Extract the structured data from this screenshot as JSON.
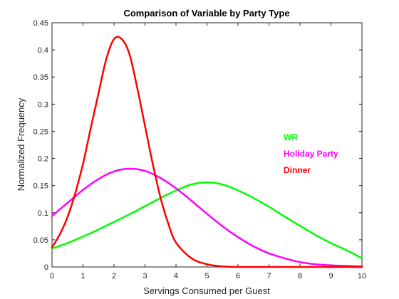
{
  "chart_data": {
    "type": "line",
    "title": "Comparison of Variable by Party Type",
    "xlabel": "Servings Consumed per Guest",
    "ylabel": "Normalized Frequency",
    "xlim": [
      0,
      10
    ],
    "ylim": [
      0,
      0.45
    ],
    "x_ticks": [
      0,
      1,
      2,
      3,
      4,
      5,
      6,
      7,
      8,
      9,
      10
    ],
    "y_ticks": [
      0,
      0.05,
      0.1,
      0.15,
      0.2,
      0.25,
      0.3,
      0.35,
      0.4,
      0.45
    ],
    "x_tick_labels": [
      "0",
      "1",
      "2",
      "3",
      "4",
      "5",
      "6",
      "7",
      "8",
      "9",
      "10"
    ],
    "y_tick_labels": [
      "0",
      "0.05",
      "0.1",
      "0.15",
      "0.2",
      "0.25",
      "0.3",
      "0.35",
      "0.4",
      "0.45"
    ],
    "grid": false,
    "box": true,
    "legend_placement": "right",
    "series": [
      {
        "name": "WR",
        "color": "#00ff00",
        "x": [
          0,
          0.5,
          1,
          1.5,
          2,
          2.5,
          3,
          3.5,
          4,
          4.5,
          5,
          5.5,
          6,
          6.5,
          7,
          7.5,
          8,
          8.5,
          9,
          9.5,
          10
        ],
        "y": [
          0.034,
          0.044,
          0.056,
          0.069,
          0.083,
          0.097,
          0.112,
          0.127,
          0.141,
          0.152,
          0.156,
          0.152,
          0.141,
          0.127,
          0.111,
          0.093,
          0.076,
          0.059,
          0.044,
          0.031,
          0.016
        ]
      },
      {
        "name": "Holiday Party",
        "color": "#ff00ff",
        "x": [
          0,
          0.5,
          1,
          1.5,
          2,
          2.5,
          3,
          3.5,
          4,
          4.5,
          5,
          5.5,
          6,
          6.5,
          7,
          7.5,
          8,
          8.5,
          9,
          9.5,
          10
        ],
        "y": [
          0.094,
          0.118,
          0.142,
          0.162,
          0.176,
          0.181,
          0.177,
          0.164,
          0.145,
          0.122,
          0.098,
          0.075,
          0.055,
          0.038,
          0.025,
          0.016,
          0.009,
          0.005,
          0.003,
          0.002,
          0.001
        ]
      },
      {
        "name": "Dinner",
        "color": "#ff0000",
        "x": [
          0,
          0.25,
          0.5,
          0.75,
          1,
          1.25,
          1.5,
          1.75,
          2,
          2.25,
          2.5,
          2.75,
          3,
          3.25,
          3.5,
          3.75,
          4,
          4.5,
          5,
          5.5,
          6,
          6.5,
          7,
          8,
          9,
          10
        ],
        "y": [
          0.036,
          0.06,
          0.092,
          0.136,
          0.19,
          0.256,
          0.32,
          0.383,
          0.42,
          0.42,
          0.392,
          0.33,
          0.26,
          0.19,
          0.128,
          0.08,
          0.045,
          0.016,
          0.005,
          0.001,
          0,
          0,
          0,
          0,
          0,
          0
        ]
      }
    ]
  }
}
